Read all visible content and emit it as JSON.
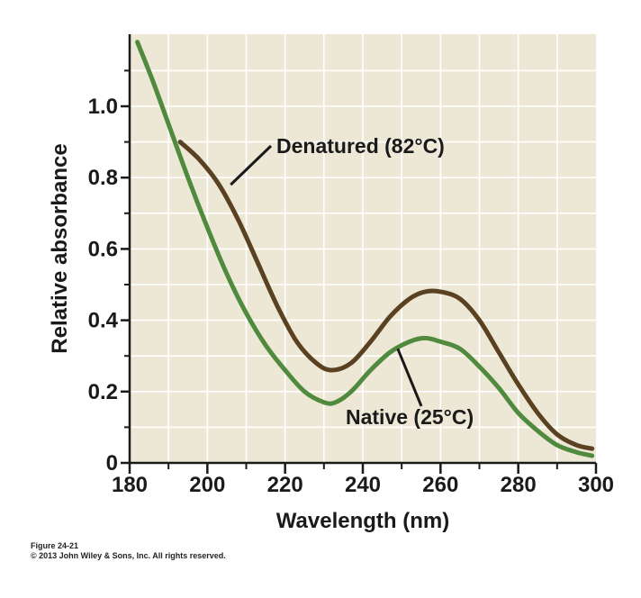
{
  "chart_data": {
    "type": "line",
    "title": "",
    "xlabel": "Wavelength (nm)",
    "ylabel": "Relative absorbance",
    "xlim": [
      180,
      300
    ],
    "ylim": [
      0,
      1.2
    ],
    "x_ticks": [
      180,
      200,
      220,
      240,
      260,
      280,
      300
    ],
    "x_tick_labels": [
      "180",
      "200",
      "220",
      "240",
      "260",
      "280",
      "300"
    ],
    "y_ticks": [
      0,
      0.2,
      0.4,
      0.6,
      0.8,
      1.0
    ],
    "y_tick_labels": [
      "0",
      "0.2",
      "0.4",
      "0.6",
      "0.8",
      "1.0"
    ],
    "grid": true,
    "series": [
      {
        "name": "Denatured (82°C)",
        "color": "#5a4121",
        "x": [
          193,
          198,
          203,
          208,
          213,
          218,
          223,
          228,
          232,
          237,
          242,
          247,
          252,
          256,
          260,
          265,
          270,
          275,
          280,
          285,
          290,
          295,
          299
        ],
        "y": [
          0.9,
          0.85,
          0.78,
          0.68,
          0.56,
          0.44,
          0.34,
          0.28,
          0.26,
          0.28,
          0.34,
          0.41,
          0.46,
          0.48,
          0.48,
          0.46,
          0.4,
          0.31,
          0.22,
          0.14,
          0.08,
          0.05,
          0.04
        ]
      },
      {
        "name": "Native (25°C)",
        "color": "#4f8a3e",
        "x": [
          182,
          186,
          190,
          195,
          200,
          205,
          210,
          215,
          220,
          225,
          230,
          233,
          237,
          242,
          247,
          252,
          256,
          260,
          265,
          270,
          275,
          280,
          285,
          290,
          295,
          299
        ],
        "y": [
          1.18,
          1.07,
          0.95,
          0.8,
          0.66,
          0.53,
          0.42,
          0.33,
          0.26,
          0.2,
          0.17,
          0.17,
          0.2,
          0.26,
          0.31,
          0.34,
          0.35,
          0.34,
          0.32,
          0.27,
          0.21,
          0.14,
          0.09,
          0.05,
          0.03,
          0.02
        ]
      }
    ],
    "annotations": [
      {
        "text": "Denatured (82°C)",
        "series": "Denatured (82°C)",
        "pointer_at": [
          206,
          0.78
        ]
      },
      {
        "text": "Native (25°C)",
        "series": "Native (25°C)",
        "pointer_at": [
          249,
          0.32
        ]
      }
    ]
  },
  "caption": {
    "figure": "Figure 24-21",
    "copyright": "© 2013 John Wiley & Sons, Inc. All rights reserved."
  },
  "colors": {
    "plot_background": "#ede8d5",
    "grid": "#ffffff",
    "axis": "#1a1a1a",
    "denatured": "#5a4121",
    "native": "#4f8a3e"
  }
}
